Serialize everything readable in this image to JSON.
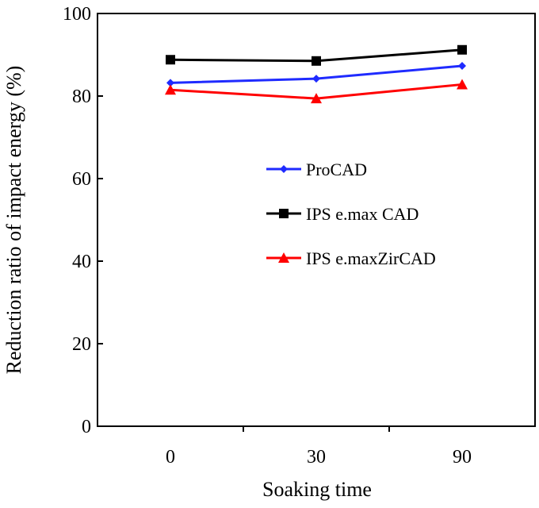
{
  "chart_data": {
    "type": "line",
    "title": "",
    "xlabel": "Soaking time",
    "ylabel": "Reduction ratio of impact energy  (%)",
    "categories": [
      "0",
      "30",
      "90"
    ],
    "ylim": [
      0,
      100
    ],
    "yticks": [
      "0",
      "20",
      "40",
      "60",
      "80",
      "100"
    ],
    "grid": false,
    "legend_position": "center-right",
    "series": [
      {
        "name": "ProCAD",
        "values": [
          83.2,
          84.2,
          87.3
        ],
        "color": "#1f2bff",
        "marker": "diamond"
      },
      {
        "name": "IPS e.max CAD",
        "values": [
          88.8,
          88.5,
          91.2
        ],
        "color": "#000000",
        "marker": "square"
      },
      {
        "name": "IPS e.maxZirCAD",
        "values": [
          81.5,
          79.4,
          82.8
        ],
        "color": "#ff0000",
        "marker": "triangle"
      }
    ]
  }
}
